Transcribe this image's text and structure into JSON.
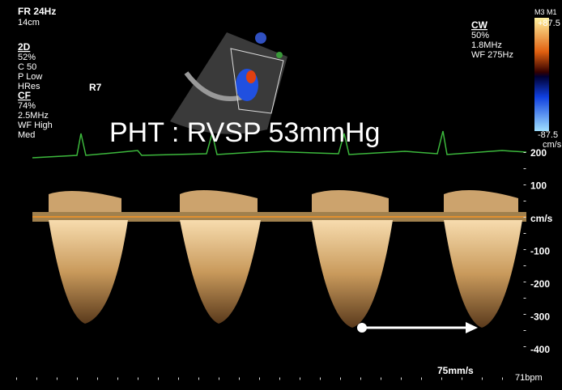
{
  "header": {
    "frame_rate": "FR 24Hz",
    "depth": "14cm"
  },
  "left_panel": [
    "2D",
    "52%",
    "C 50",
    "P Low",
    "HRes",
    "CF",
    "74%",
    "2.5MHz",
    "WF High",
    "Med"
  ],
  "probe_label": "R7",
  "right_panel": [
    "CW",
    "50%",
    "1.8MHz",
    "WF 275Hz"
  ],
  "color_bar": {
    "title": "M3 M1",
    "max": "+87.5",
    "min": "-87.5",
    "unit": "cm/s"
  },
  "scale": {
    "labels": [
      200,
      100,
      "cm/s",
      -100,
      -200,
      -300,
      -400
    ]
  },
  "annotation": "PHT : RVSP 53mmHg",
  "footer": {
    "sweep": "75mm/s",
    "heart_rate": "71bpm"
  }
}
